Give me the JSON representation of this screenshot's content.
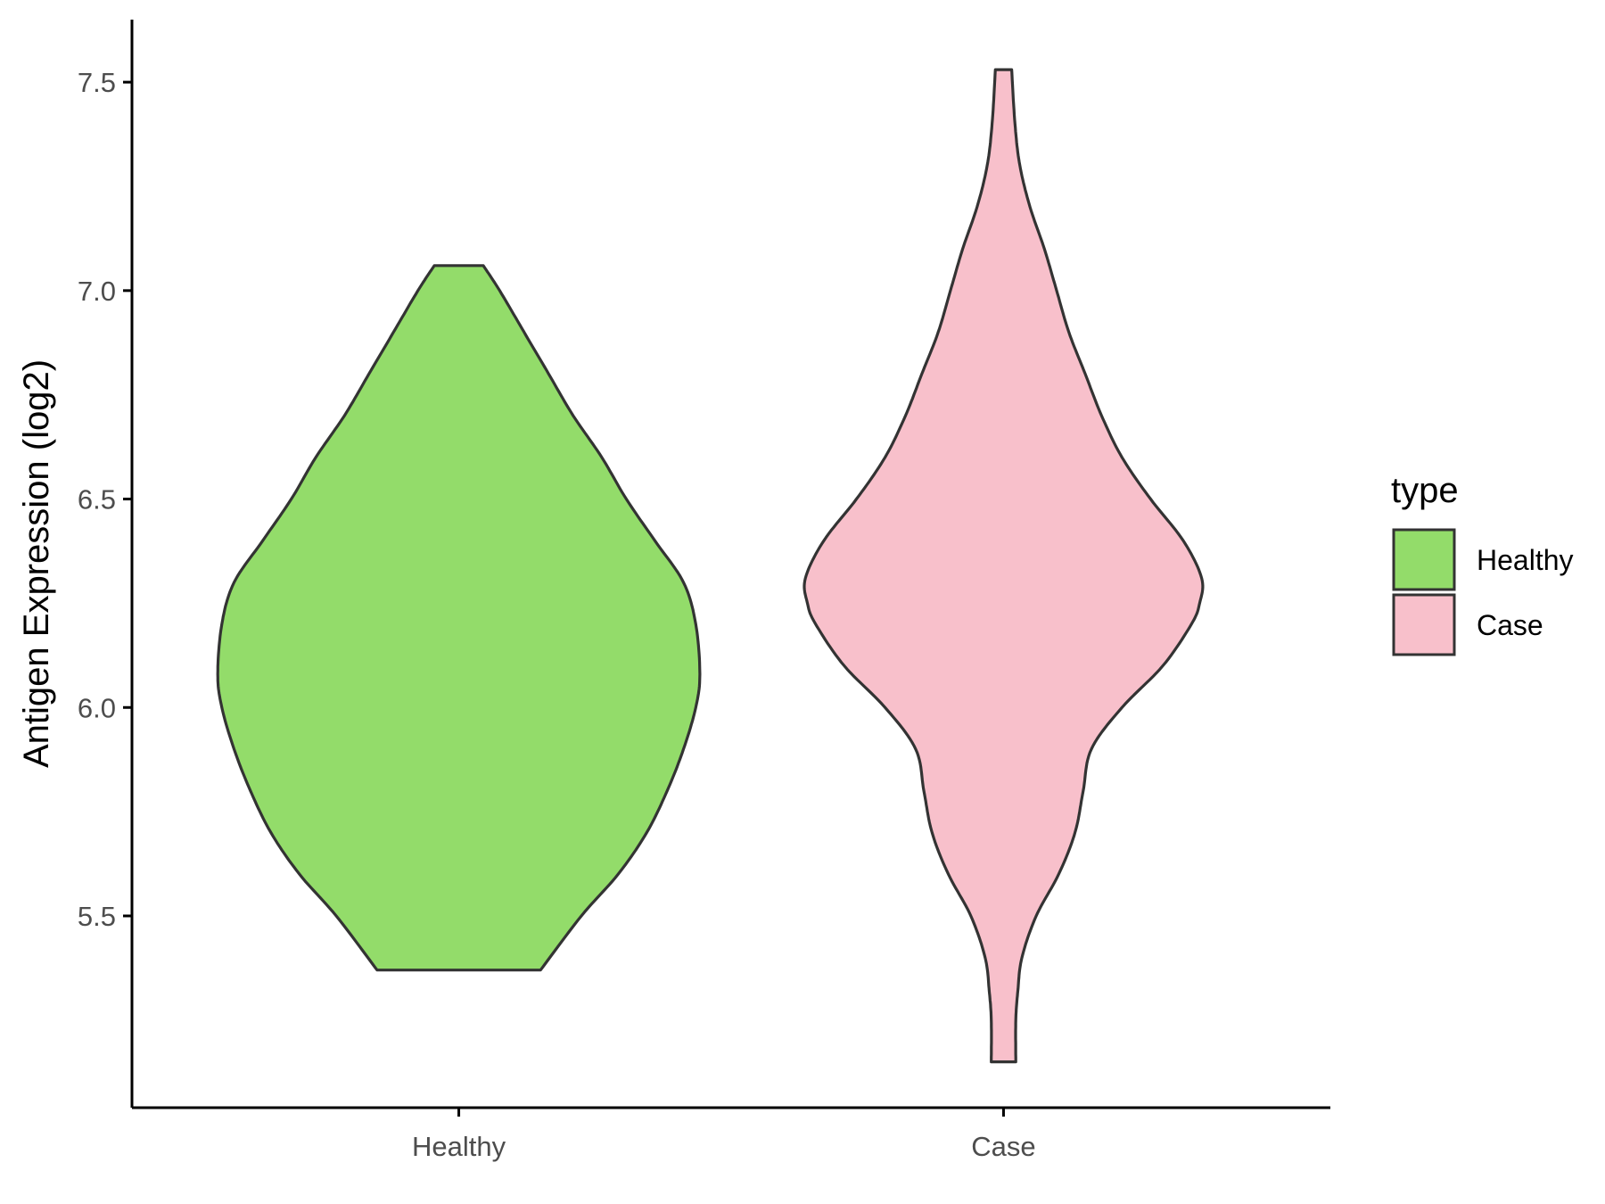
{
  "chart_data": {
    "type": "violin",
    "ylabel": "Antigen Expression (log2)",
    "xlabel": "",
    "categories": [
      "Healthy",
      "Case"
    ],
    "yticks": [
      "5.5",
      "6.0",
      "6.5",
      "7.0",
      "7.5"
    ],
    "ylim": [
      5.04,
      7.65
    ],
    "grid": false,
    "legend": {
      "title": "type",
      "placement": "right",
      "entries": [
        "Healthy",
        "Case"
      ]
    },
    "series": [
      {
        "category": "Healthy",
        "color": "#93DC6A",
        "min": 5.37,
        "max": 7.06,
        "profile": [
          [
            5.37,
            0.2
          ],
          [
            5.5,
            0.3
          ],
          [
            5.6,
            0.39
          ],
          [
            5.7,
            0.46
          ],
          [
            5.8,
            0.51
          ],
          [
            5.9,
            0.55
          ],
          [
            6.0,
            0.58
          ],
          [
            6.08,
            0.59
          ],
          [
            6.2,
            0.58
          ],
          [
            6.3,
            0.55
          ],
          [
            6.4,
            0.48
          ],
          [
            6.5,
            0.41
          ],
          [
            6.6,
            0.35
          ],
          [
            6.7,
            0.28
          ],
          [
            6.8,
            0.22
          ],
          [
            6.9,
            0.16
          ],
          [
            7.0,
            0.1
          ],
          [
            7.06,
            0.06
          ]
        ]
      },
      {
        "category": "Case",
        "color": "#F8C0CB",
        "min": 5.15,
        "max": 7.53,
        "profile": [
          [
            5.15,
            0.03
          ],
          [
            5.25,
            0.03
          ],
          [
            5.32,
            0.035
          ],
          [
            5.4,
            0.045
          ],
          [
            5.5,
            0.08
          ],
          [
            5.6,
            0.135
          ],
          [
            5.7,
            0.175
          ],
          [
            5.8,
            0.195
          ],
          [
            5.9,
            0.215
          ],
          [
            6.0,
            0.29
          ],
          [
            6.1,
            0.39
          ],
          [
            6.2,
            0.46
          ],
          [
            6.25,
            0.48
          ],
          [
            6.31,
            0.485
          ],
          [
            6.4,
            0.44
          ],
          [
            6.5,
            0.36
          ],
          [
            6.6,
            0.29
          ],
          [
            6.7,
            0.24
          ],
          [
            6.8,
            0.2
          ],
          [
            6.9,
            0.16
          ],
          [
            7.0,
            0.13
          ],
          [
            7.1,
            0.1
          ],
          [
            7.2,
            0.065
          ],
          [
            7.3,
            0.04
          ],
          [
            7.4,
            0.028
          ],
          [
            7.53,
            0.02
          ]
        ]
      }
    ]
  }
}
